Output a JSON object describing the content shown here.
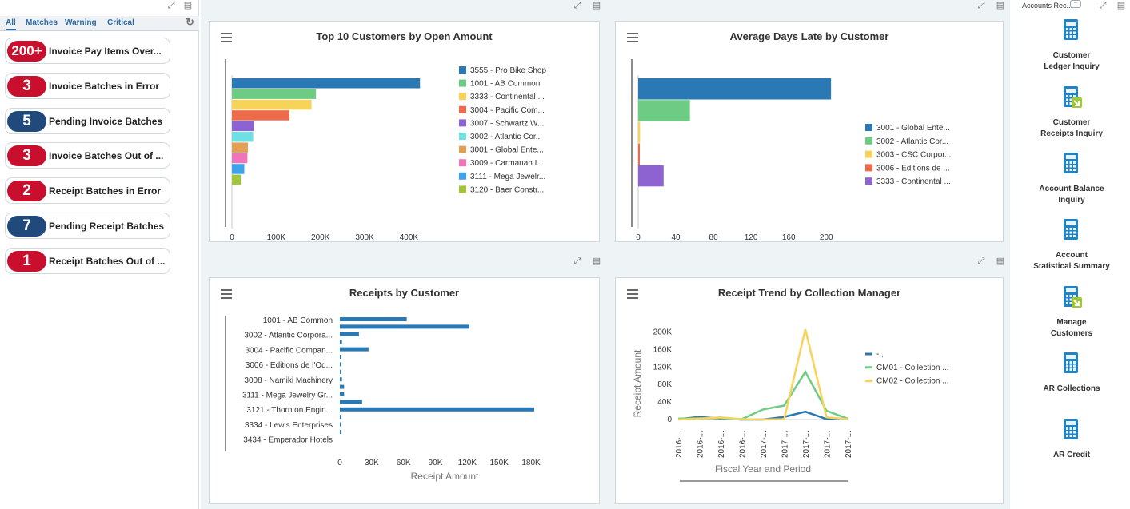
{
  "left_panel": {
    "tabs": [
      "All",
      "Matches",
      "Warning",
      "Critical"
    ],
    "items": [
      {
        "count": "200+",
        "label": "Invoice Pay Items Over...",
        "color": "#c8102e"
      },
      {
        "count": "3",
        "label": "Invoice Batches in Error",
        "color": "#c8102e"
      },
      {
        "count": "5",
        "label": "Pending Invoice Batches",
        "color": "#204a7c"
      },
      {
        "count": "3",
        "label": "Invoice Batches Out of ...",
        "color": "#c8102e"
      },
      {
        "count": "2",
        "label": "Receipt Batches in Error",
        "color": "#c8102e"
      },
      {
        "count": "7",
        "label": "Pending Receipt Batches",
        "color": "#204a7c"
      },
      {
        "count": "1",
        "label": "Receipt Batches Out of ...",
        "color": "#c8102e"
      }
    ]
  },
  "chart_data": [
    {
      "type": "bar",
      "orientation": "horizontal",
      "title": "Top 10 Customers by Open Amount",
      "categories": [
        "3555 - Pro Bike Shop",
        "1001 - AB Common",
        "3333 - Continental ...",
        "3004 - Pacific Com...",
        "3007 - Schwartz W...",
        "3002 - Atlantic Cor...",
        "3001 - Global Ente...",
        "3009 - Carmanah I...",
        "3111 - Mega Jewelr...",
        "3120 - Baer Constr..."
      ],
      "values": [
        425000,
        190000,
        180000,
        130000,
        50000,
        48000,
        36000,
        35000,
        28000,
        20000
      ],
      "colors": [
        "#2a78b4",
        "#6ecb84",
        "#f8d35a",
        "#ee6a4b",
        "#8c63d0",
        "#6ee0e2",
        "#e1a056",
        "#ef74ba",
        "#3ea2ec",
        "#a2c53a"
      ],
      "xticks": [
        "0",
        "100K",
        "200K",
        "300K",
        "400K"
      ],
      "xlim": [
        0,
        430000
      ]
    },
    {
      "type": "bar",
      "orientation": "horizontal",
      "title": "Average Days Late by Customer",
      "categories": [
        "3001 - Global Ente...",
        "3002 - Atlantic Cor...",
        "3003 - CSC Corpor...",
        "3006 - Editions de ...",
        "3333 - Continental ..."
      ],
      "values": [
        205,
        55,
        2,
        1,
        27
      ],
      "colors": [
        "#2a78b4",
        "#6ecb84",
        "#f8d35a",
        "#ee6a4b",
        "#8c63d0"
      ],
      "xticks": [
        "0",
        "40",
        "80",
        "120",
        "160",
        "200"
      ],
      "xlim": [
        0,
        210
      ]
    },
    {
      "type": "bar",
      "orientation": "horizontal",
      "title": "Receipts by Customer",
      "xlabel": "Receipt Amount",
      "ylabels": [
        "1001 - AB Common",
        "3002 - Atlantic Corpora...",
        "3004 - Pacific Compan...",
        "3006 - Editions de l'Od...",
        "3008 - Namiki Machinery",
        "3111 - Mega Jewelry Gr...",
        "3121 - Thornton Engin...",
        "3334 - Lewis Enterprises",
        "3434 - Emperador Hotels"
      ],
      "values": [
        63000,
        122000,
        18000,
        2000,
        27000,
        1000,
        1500,
        1500,
        2000,
        4000,
        4000,
        21000,
        183000,
        1000,
        1000,
        1000
      ],
      "color": "#2a78b4",
      "xticks": [
        "0",
        "30K",
        "60K",
        "90K",
        "120K",
        "150K",
        "180K"
      ],
      "xlim": [
        0,
        186000
      ]
    },
    {
      "type": "line",
      "title": "Receipt Trend by Collection Manager",
      "xlabel": "Fiscal Year and Period",
      "ylabel": "Receipt Amount",
      "x": [
        "2016-...",
        "2016-...",
        "2016-...",
        "2016-...",
        "2017-...",
        "2017-...",
        "2017-...",
        "2017-...",
        "2017-..."
      ],
      "yticks": [
        "0",
        "40K",
        "80K",
        "120K",
        "160K",
        "200K"
      ],
      "ylim": [
        0,
        210000
      ],
      "series": [
        {
          "name": "- ,",
          "color": "#2a78b4",
          "values": [
            1000,
            6000,
            2000,
            0,
            0,
            6000,
            18000,
            1000,
            1000
          ]
        },
        {
          "name": "CM01 - Collection ...",
          "color": "#6ecb84",
          "values": [
            2000,
            3000,
            3000,
            1000,
            23000,
            32000,
            109000,
            20000,
            2000
          ]
        },
        {
          "name": "CM02 - Collection ...",
          "color": "#f8d35a",
          "values": [
            0,
            2000,
            5000,
            1000,
            0,
            1000,
            206000,
            5000,
            1000
          ]
        }
      ]
    }
  ],
  "right_panel": {
    "header": "Accounts Rec...",
    "apps": [
      {
        "label1": "Customer",
        "label2": "Ledger Inquiry",
        "icon": "calculator-icon"
      },
      {
        "label1": "Customer",
        "label2": "Receipts Inquiry",
        "icon": "calculator-green-icon"
      },
      {
        "label1": "Account Balance",
        "label2": "Inquiry",
        "icon": "calculator-icon"
      },
      {
        "label1": "Account",
        "label2": "Statistical Summary",
        "icon": "calculator-icon"
      },
      {
        "label1": "Manage",
        "label2": "Customers",
        "icon": "calculator-green-icon"
      },
      {
        "label1": "AR Collections",
        "label2": "",
        "icon": "calculator-icon"
      },
      {
        "label1": "AR Credit",
        "label2": "",
        "icon": "calculator-icon"
      }
    ]
  }
}
